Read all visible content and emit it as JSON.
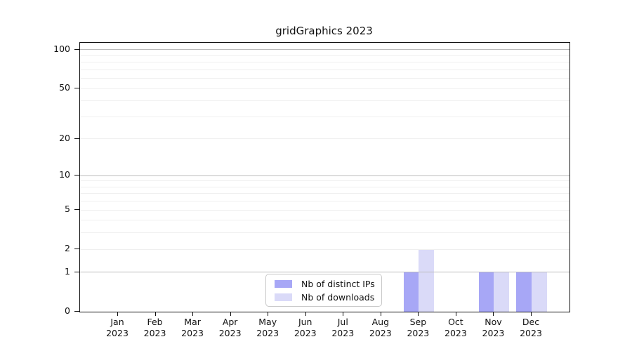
{
  "chart_data": {
    "type": "bar",
    "title": "gridGraphics 2023",
    "categories": [
      {
        "month": "Jan",
        "year": "2023"
      },
      {
        "month": "Feb",
        "year": "2023"
      },
      {
        "month": "Mar",
        "year": "2023"
      },
      {
        "month": "Apr",
        "year": "2023"
      },
      {
        "month": "May",
        "year": "2023"
      },
      {
        "month": "Jun",
        "year": "2023"
      },
      {
        "month": "Jul",
        "year": "2023"
      },
      {
        "month": "Aug",
        "year": "2023"
      },
      {
        "month": "Sep",
        "year": "2023"
      },
      {
        "month": "Oct",
        "year": "2023"
      },
      {
        "month": "Nov",
        "year": "2023"
      },
      {
        "month": "Dec",
        "year": "2023"
      }
    ],
    "series": [
      {
        "name": "Nb of distinct IPs",
        "color": "#a7a7f6",
        "values": [
          0,
          0,
          0,
          0,
          0,
          0,
          0,
          0,
          1,
          0,
          1,
          1
        ]
      },
      {
        "name": "Nb of downloads",
        "color": "#dadaf8",
        "values": [
          0,
          0,
          0,
          0,
          0,
          0,
          0,
          0,
          2,
          0,
          1,
          1
        ]
      }
    ],
    "xlabel": "",
    "ylabel": "",
    "yticks": [
      0,
      1,
      2,
      5,
      10,
      20,
      50,
      100
    ],
    "ylim": [
      0,
      113
    ],
    "scale": "log10(value+1)",
    "gridlines_major": [
      1,
      10,
      100
    ],
    "gridlines_minor": [
      2,
      3,
      4,
      5,
      6,
      7,
      8,
      9,
      20,
      30,
      40,
      50,
      60,
      70,
      80,
      90
    ],
    "legend_position": "bottom-center-inside",
    "grid": "on"
  },
  "colors": {
    "bar_distinct_ips": "#a7a7f6",
    "bar_downloads": "#dadaf8",
    "grid_major": "#bbbbbb",
    "grid_minor": "#efefef",
    "axis": "#111111",
    "background": "#ffffff"
  }
}
